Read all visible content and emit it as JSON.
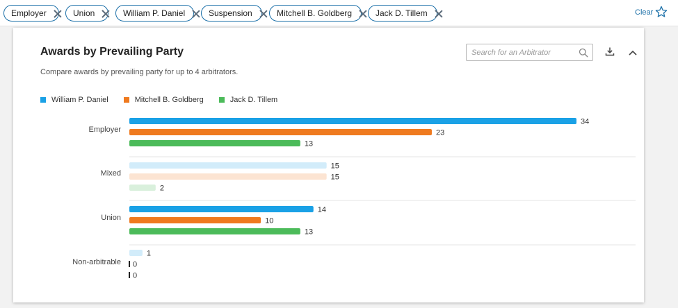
{
  "filters": {
    "chips": [
      {
        "label": "Employer"
      },
      {
        "label": "Union"
      },
      {
        "label": "William P. Daniel"
      },
      {
        "label": "Suspension"
      },
      {
        "label": "Mitchell B. Goldberg"
      },
      {
        "label": "Jack D. Tillem"
      }
    ],
    "clear_label": "Clear",
    "star_icon": "star-outline-icon"
  },
  "card": {
    "title": "Awards by Prevailing Party",
    "subtitle": "Compare awards by prevailing party for up to 4 arbitrators.",
    "search_placeholder": "Search for an Arbitrator",
    "search_value": "",
    "icons": [
      "search-icon",
      "download-icon",
      "chevron-up-icon"
    ]
  },
  "colors": {
    "accent": "#1a6fa8",
    "series": [
      "#1aa1e6",
      "#ef7a1f",
      "#4cbb5a"
    ],
    "faded": [
      "#d2ecfa",
      "#fce4d2",
      "#d9f0dc"
    ],
    "zero_bar": "#222222",
    "grid": "#e5e5e5"
  },
  "chart_data": {
    "type": "bar",
    "orientation": "horizontal",
    "categories": [
      "Employer",
      "Mixed",
      "Union",
      "Non-arbitrable"
    ],
    "series": [
      {
        "name": "William P. Daniel",
        "values": [
          34,
          15,
          14,
          1
        ]
      },
      {
        "name": "Mitchell B. Goldberg",
        "values": [
          23,
          15,
          10,
          0
        ]
      },
      {
        "name": "Jack D. Tillem",
        "values": [
          13,
          2,
          13,
          0
        ]
      }
    ],
    "faded_categories": [
      "Mixed",
      "Non-arbitrable"
    ],
    "xlim": [
      0,
      34
    ],
    "legend_position": "top-left",
    "data_labels": true,
    "grid": false
  }
}
